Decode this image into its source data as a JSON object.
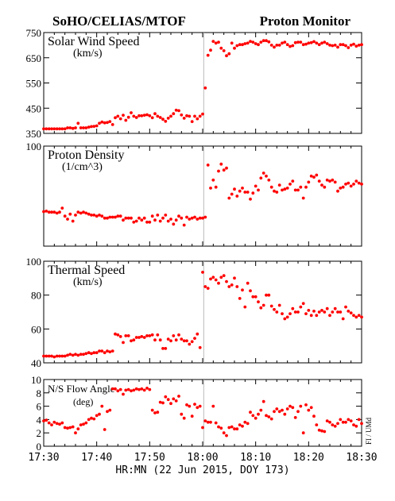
{
  "header": {
    "left_title": "SoHO/CELIAS/MTOF",
    "right_title": "Proton Monitor"
  },
  "x_axis": {
    "label": "HR:MN (22 Jun 2015, DOY 173)",
    "range": [
      0,
      60
    ],
    "tick_labels": [
      "17:30",
      "17:40",
      "17:50",
      "18:00",
      "18:10",
      "18:20",
      "18:30"
    ],
    "tick_positions_min": [
      0,
      10,
      20,
      30,
      40,
      50,
      60
    ]
  },
  "side_label": "FI / UMd",
  "colors": {
    "points": "#ff0000",
    "frame": "#000000",
    "gap_line": "#bbbbbb"
  },
  "chart_data": [
    {
      "type": "scatter",
      "title": "Solar Wind Speed",
      "unit": "(km/s)",
      "ylim": [
        350,
        750
      ],
      "y_ticks": [
        350,
        450,
        550,
        650,
        750
      ],
      "y_tick_labels": [
        "350",
        "450",
        "550",
        "650",
        "750"
      ],
      "gap_line_x": 30.2,
      "x": [
        0,
        0.5,
        1,
        1.5,
        2,
        2.5,
        3,
        3.5,
        4,
        4.5,
        5,
        5.5,
        6,
        6.5,
        7,
        7.5,
        8,
        8.5,
        9,
        9.5,
        10,
        10.5,
        11,
        11.5,
        12,
        12.5,
        13,
        13.5,
        14,
        14.5,
        15,
        15.5,
        16,
        16.5,
        17,
        17.5,
        18,
        18.5,
        19,
        19.5,
        20,
        20.5,
        21,
        21.5,
        22,
        22.5,
        23,
        23.5,
        24,
        24.5,
        25,
        25.5,
        26,
        26.5,
        27,
        27.5,
        28,
        28.5,
        29,
        29.5,
        30,
        30.5,
        31,
        31.5,
        32,
        32.5,
        33,
        33.5,
        34,
        34.5,
        35,
        35.5,
        36,
        36.5,
        37,
        37.5,
        38,
        38.5,
        39,
        39.5,
        40,
        40.5,
        41,
        41.5,
        42,
        42.5,
        43,
        43.5,
        44,
        44.5,
        45,
        45.5,
        46,
        46.5,
        47,
        47.5,
        48,
        48.5,
        49,
        49.5,
        50,
        50.5,
        51,
        51.5,
        52,
        52.5,
        53,
        53.5,
        54,
        54.5,
        55,
        55.5,
        56,
        56.5,
        57,
        57.5,
        58,
        58.5,
        59,
        59.5,
        60
      ],
      "y": [
        368,
        368,
        368,
        368,
        368,
        368,
        368,
        368,
        368,
        372,
        372,
        370,
        372,
        390,
        372,
        372,
        372,
        375,
        377,
        378,
        380,
        390,
        395,
        392,
        393,
        397,
        385,
        412,
        418,
        408,
        422,
        402,
        414,
        432,
        418,
        413,
        420,
        420,
        422,
        424,
        420,
        412,
        428,
        418,
        413,
        406,
        398,
        410,
        418,
        428,
        442,
        440,
        423,
        410,
        420,
        418,
        397,
        418,
        408,
        418,
        427,
        530,
        660,
        680,
        715,
        708,
        712,
        688,
        678,
        658,
        666,
        708,
        688,
        698,
        702,
        702,
        706,
        708,
        715,
        712,
        706,
        702,
        712,
        718,
        718,
        713,
        700,
        692,
        700,
        700,
        708,
        712,
        702,
        695,
        698,
        710,
        712,
        712,
        702,
        704,
        708,
        710,
        714,
        708,
        702,
        708,
        712,
        706,
        700,
        698,
        700,
        692,
        702,
        702,
        698,
        690,
        700,
        704,
        696,
        700,
        702
      ]
    },
    {
      "type": "scatter",
      "title": "Proton Density",
      "unit": "(1/cm^3)",
      "ylim": [
        0,
        100
      ],
      "y_ticks": [
        0,
        100
      ],
      "y_tick_labels": [
        "",
        "100"
      ],
      "gap_line_x": 30.2,
      "x": [
        0,
        0.5,
        1,
        1.5,
        2,
        2.5,
        3,
        3.5,
        4,
        4.5,
        5,
        5.5,
        6,
        6.5,
        7,
        7.5,
        8,
        8.5,
        9,
        9.5,
        10,
        10.5,
        11,
        11.5,
        12,
        12.5,
        13,
        13.5,
        14,
        14.5,
        15,
        15.5,
        16,
        16.5,
        17,
        17.5,
        18,
        18.5,
        19,
        19.5,
        20,
        20.5,
        21,
        21.5,
        22,
        22.5,
        23,
        23.5,
        24,
        24.5,
        25,
        25.5,
        26,
        26.5,
        27,
        27.5,
        28,
        28.5,
        29,
        29.5,
        30,
        30.5,
        31,
        31.5,
        32,
        32.5,
        33,
        33.5,
        34,
        34.5,
        35,
        35.5,
        36,
        36.5,
        37,
        37.5,
        38,
        38.5,
        39,
        39.5,
        40,
        40.5,
        41,
        41.5,
        42,
        42.5,
        43,
        43.5,
        44,
        44.5,
        45,
        45.5,
        46,
        46.5,
        47,
        47.5,
        48,
        48.5,
        49,
        49.5,
        50,
        50.5,
        51,
        51.5,
        52,
        52.5,
        53,
        53.5,
        54,
        54.5,
        55,
        55.5,
        56,
        56.5,
        57,
        57.5,
        58,
        58.5,
        59,
        59.5,
        60
      ],
      "y": [
        34.5,
        35,
        34,
        34,
        34,
        33,
        34,
        38,
        30,
        27,
        32,
        25,
        31,
        34,
        33,
        34,
        33,
        32,
        31,
        31,
        30,
        31,
        30,
        28,
        28,
        29,
        29,
        29,
        30,
        30,
        26,
        28,
        28,
        28,
        24,
        25,
        28,
        26,
        28,
        24,
        24,
        30,
        26,
        31,
        25,
        28,
        31,
        25,
        27,
        22,
        26,
        30,
        28,
        21,
        29,
        27,
        28,
        29,
        27,
        28,
        28,
        29,
        81,
        58,
        66,
        59,
        75,
        82,
        76,
        78,
        48,
        52,
        57,
        50,
        55,
        58,
        54,
        54,
        47,
        53,
        60,
        56,
        68,
        73,
        70,
        66,
        59,
        55,
        54,
        61,
        56,
        57,
        58,
        62,
        65,
        56,
        56,
        59,
        48,
        59,
        64,
        70,
        69,
        71,
        65,
        61,
        59,
        66,
        65,
        66,
        64,
        55,
        58,
        59,
        62,
        63,
        60,
        62,
        65,
        63,
        62
      ]
    },
    {
      "type": "scatter",
      "title": "Thermal Speed",
      "unit": "(km/s)",
      "ylim": [
        40,
        100
      ],
      "y_ticks": [
        40,
        60,
        80,
        100
      ],
      "y_tick_labels": [
        "40",
        "60",
        "80",
        "100"
      ],
      "gap_line_x": 30.2,
      "x": [
        0,
        0.5,
        1,
        1.5,
        2,
        2.5,
        3,
        3.5,
        4,
        4.5,
        5,
        5.5,
        6,
        6.5,
        7,
        7.5,
        8,
        8.5,
        9,
        9.5,
        10,
        10.5,
        11,
        11.5,
        12,
        12.5,
        13,
        13.5,
        14,
        14.5,
        15,
        15.5,
        16,
        16.5,
        17,
        17.5,
        18,
        18.5,
        19,
        19.5,
        20,
        20.5,
        21,
        21.5,
        22,
        22.5,
        23,
        23.5,
        24,
        24.5,
        25,
        25.5,
        26,
        26.5,
        27,
        27.5,
        28,
        28.5,
        29,
        29.5,
        30,
        30.5,
        31,
        31.5,
        32,
        32.5,
        33,
        33.5,
        34,
        34.5,
        35,
        35.5,
        36,
        36.5,
        37,
        37.5,
        38,
        38.5,
        39,
        39.5,
        40,
        40.5,
        41,
        41.5,
        42,
        42.5,
        43,
        43.5,
        44,
        44.5,
        45,
        45.5,
        46,
        46.5,
        47,
        47.5,
        48,
        48.5,
        49,
        49.5,
        50,
        50.5,
        51,
        51.5,
        52,
        52.5,
        53,
        53.5,
        54,
        54.5,
        55,
        55.5,
        56,
        56.5,
        57,
        57.5,
        58,
        58.5,
        59,
        59.5,
        60
      ],
      "y": [
        44,
        44,
        44,
        44,
        43.5,
        44,
        44,
        44,
        44,
        44.5,
        45,
        44.5,
        45,
        44.5,
        45,
        45,
        45.5,
        46,
        45.5,
        46,
        46,
        47,
        47,
        46,
        47,
        46.5,
        47,
        57,
        56.5,
        55.5,
        52,
        56,
        56,
        53,
        53.5,
        55,
        55,
        55.5,
        55,
        56,
        56,
        56.5,
        53.5,
        56.5,
        53.5,
        48.5,
        48.5,
        54,
        53,
        56,
        53.5,
        56.5,
        54,
        53,
        53,
        51,
        52.5,
        54.5,
        57,
        49,
        93.5,
        85,
        84,
        89.5,
        90.5,
        89,
        87,
        90.5,
        91.5,
        88,
        85,
        86,
        90,
        85,
        78,
        83,
        73,
        87,
        82.5,
        79,
        79,
        76,
        72.5,
        74,
        80,
        80,
        73.5,
        71.5,
        70,
        74,
        69,
        66,
        67,
        69,
        72,
        70,
        70,
        73,
        75,
        69,
        71,
        68,
        70.5,
        68,
        70,
        71,
        70,
        72,
        68,
        70,
        72,
        70,
        70,
        66,
        73,
        70.5,
        69.5,
        68,
        67,
        68,
        67
      ]
    },
    {
      "type": "scatter",
      "title": "N/S Flow Angle",
      "unit": "(deg)",
      "ylim": [
        0,
        10
      ],
      "y_ticks": [
        0,
        2,
        4,
        6,
        8,
        10
      ],
      "y_tick_labels": [
        "0",
        "2",
        "4",
        "6",
        "8",
        "10"
      ],
      "gap_line_x": 30.2,
      "x": [
        0,
        0.5,
        1,
        1.5,
        2,
        2.5,
        3,
        3.5,
        4,
        4.5,
        5,
        5.5,
        6,
        6.5,
        7,
        7.5,
        8,
        8.5,
        9,
        9.5,
        10,
        10.5,
        11,
        11.5,
        12,
        12.5,
        13,
        13.5,
        14,
        14.5,
        15,
        15.5,
        16,
        16.5,
        17,
        17.5,
        18,
        18.5,
        19,
        19.5,
        20,
        20.5,
        21,
        21.5,
        22,
        22.5,
        23,
        23.5,
        24,
        24.5,
        25,
        25.5,
        26,
        26.5,
        27,
        27.5,
        28,
        28.5,
        29,
        29.5,
        30,
        30.5,
        31,
        31.5,
        32,
        32.5,
        33,
        33.5,
        34,
        34.5,
        35,
        35.5,
        36,
        36.5,
        37,
        37.5,
        38,
        38.5,
        39,
        39.5,
        40,
        40.5,
        41,
        41.5,
        42,
        42.5,
        43,
        43.5,
        44,
        44.5,
        45,
        45.5,
        46,
        46.5,
        47,
        47.5,
        48,
        48.5,
        49,
        49.5,
        50,
        50.5,
        51,
        51.5,
        52,
        52.5,
        53,
        53.5,
        54,
        54.5,
        55,
        55.5,
        56,
        56.5,
        57,
        57.5,
        58,
        58.5,
        59,
        59.5,
        60
      ],
      "y": [
        3.8,
        3.9,
        3.5,
        3.2,
        3.6,
        3.4,
        3.3,
        3.5,
        2.8,
        2.7,
        2.8,
        2.9,
        2.0,
        2.6,
        3.2,
        3.3,
        3.5,
        4.0,
        4.2,
        4.1,
        4.6,
        4.8,
        6.0,
        2.5,
        5.2,
        5.4,
        8.6,
        8.6,
        8.3,
        8.5,
        7.8,
        8.4,
        8.5,
        8.3,
        8.4,
        8.6,
        8.5,
        8.6,
        8.4,
        8.7,
        8.5,
        5.4,
        5.0,
        5.1,
        6.6,
        6.5,
        7.4,
        7.0,
        6.4,
        7.1,
        6.8,
        7.5,
        4.8,
        4.2,
        6.2,
        6.0,
        4.5,
        6.3,
        5.8,
        6.0,
        2.8,
        3.8,
        3.6,
        3.6,
        6.0,
        3.5,
        2.9,
        2.7,
        2.0,
        1.6,
        2.8,
        2.9,
        2.6,
        2.6,
        3.2,
        3.0,
        3.6,
        3.4,
        5.1,
        4.6,
        4.2,
        4.8,
        5.4,
        6.7,
        4.6,
        4.4,
        4.1,
        5.2,
        5.6,
        5.2,
        5.4,
        4.8,
        5.6,
        6.0,
        5.8,
        4.3,
        5.2,
        6.0,
        2.0,
        6.2,
        5.4,
        5.8,
        4.5,
        3.2,
        2.4,
        2.3,
        2.2,
        3.8,
        3.6,
        3.2,
        3.0,
        3.4,
        4.0,
        3.6,
        3.6,
        4.0,
        3.8,
        3.2,
        3.0,
        4.0,
        3.4
      ]
    }
  ]
}
